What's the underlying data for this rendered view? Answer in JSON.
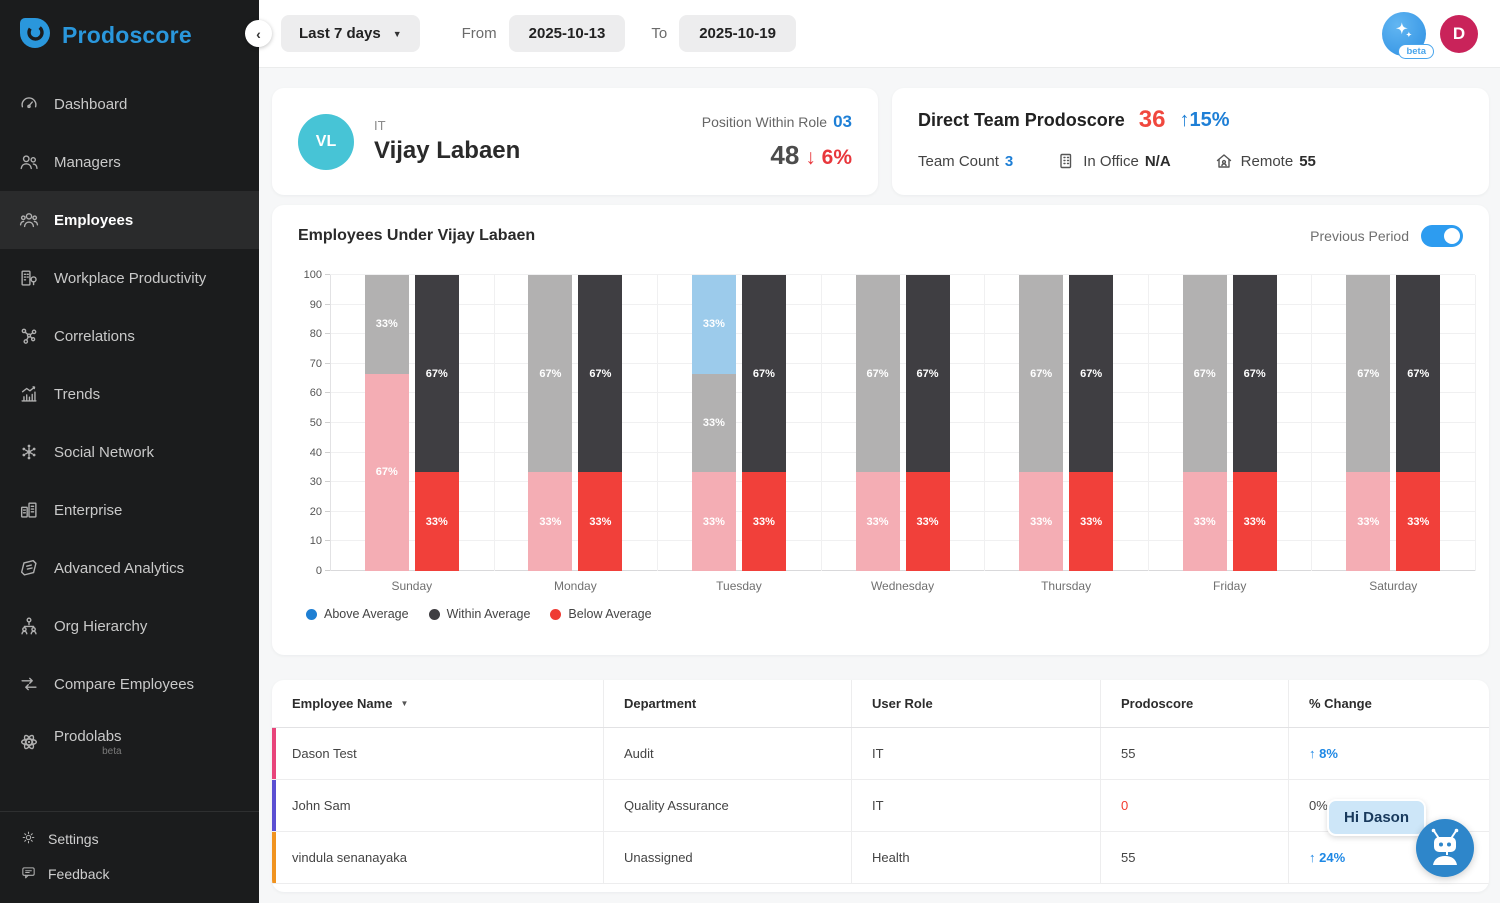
{
  "sidebar": {
    "logo_text": "Prodoscore",
    "items": [
      {
        "label": "Dashboard"
      },
      {
        "label": "Managers"
      },
      {
        "label": "Employees",
        "active": true
      },
      {
        "label": "Workplace Productivity"
      },
      {
        "label": "Correlations"
      },
      {
        "label": "Trends"
      },
      {
        "label": "Social Network"
      },
      {
        "label": "Enterprise"
      },
      {
        "label": "Advanced Analytics"
      },
      {
        "label": "Org Hierarchy"
      },
      {
        "label": "Compare Employees"
      },
      {
        "label": "Prodolabs",
        "beta": "beta"
      }
    ],
    "footer": [
      {
        "label": "Settings"
      },
      {
        "label": "Feedback"
      }
    ]
  },
  "topbar": {
    "range_label": "Last 7 days",
    "from_label": "From",
    "from_value": "2025-10-13",
    "to_label": "To",
    "to_value": "2025-10-19",
    "beta_badge": "beta",
    "avatar_initial": "D"
  },
  "profile": {
    "initials": "VL",
    "department": "IT",
    "name": "Vijay Labaen",
    "position_label": "Position Within Role",
    "position_value": "03",
    "score": "48",
    "score_change": "↓ 6%"
  },
  "team": {
    "title": "Direct Team Prodoscore",
    "score": "36",
    "change": "↑15%",
    "team_count_label": "Team Count",
    "team_count": "3",
    "in_office_label": "In Office",
    "in_office_value": "N/A",
    "remote_label": "Remote",
    "remote_value": "55"
  },
  "chart": {
    "title": "Employees Under Vijay Labaen",
    "toggle_label": "Previous Period",
    "toggle_on": true
  },
  "chart_data": {
    "type": "bar",
    "stacked": true,
    "categories": [
      "Sunday",
      "Monday",
      "Tuesday",
      "Wednesday",
      "Thursday",
      "Friday",
      "Saturday"
    ],
    "ylim": [
      0,
      100
    ],
    "y_ticks": [
      0,
      10,
      20,
      30,
      40,
      50,
      60,
      70,
      80,
      90,
      100
    ],
    "grid": true,
    "legend_position": "bottom-left",
    "legend": [
      {
        "key": "above",
        "label": "Above Average",
        "color": "#1E7FD3"
      },
      {
        "key": "within",
        "label": "Within Average",
        "color": "#3F3E42"
      },
      {
        "key": "below",
        "label": "Below Average",
        "color": "#EF3B33"
      }
    ],
    "series_colors": {
      "current": {
        "below": "#F1403A",
        "within": "#3F3E42",
        "above": "#59A9DE"
      },
      "previous": {
        "below": "#F4ADB4",
        "within": "#B2B1B1",
        "above": "#9CCBEB"
      }
    },
    "groups": [
      {
        "category": "Sunday",
        "previous": [
          {
            "key": "below",
            "value": 66.67
          },
          {
            "key": "within",
            "value": 33.33
          }
        ],
        "current": [
          {
            "key": "below",
            "value": 33.33
          },
          {
            "key": "within",
            "value": 66.67
          }
        ]
      },
      {
        "category": "Monday",
        "previous": [
          {
            "key": "below",
            "value": 33.33
          },
          {
            "key": "within",
            "value": 66.67
          }
        ],
        "current": [
          {
            "key": "below",
            "value": 33.33
          },
          {
            "key": "within",
            "value": 66.67
          }
        ]
      },
      {
        "category": "Tuesday",
        "previous": [
          {
            "key": "below",
            "value": 33.33
          },
          {
            "key": "within",
            "value": 33.33
          },
          {
            "key": "above",
            "value": 33.34
          }
        ],
        "current": [
          {
            "key": "below",
            "value": 33.33
          },
          {
            "key": "within",
            "value": 66.67
          }
        ]
      },
      {
        "category": "Wednesday",
        "previous": [
          {
            "key": "below",
            "value": 33.33
          },
          {
            "key": "within",
            "value": 66.67
          }
        ],
        "current": [
          {
            "key": "below",
            "value": 33.33
          },
          {
            "key": "within",
            "value": 66.67
          }
        ]
      },
      {
        "category": "Thursday",
        "previous": [
          {
            "key": "below",
            "value": 33.33
          },
          {
            "key": "within",
            "value": 66.67
          }
        ],
        "current": [
          {
            "key": "below",
            "value": 33.33
          },
          {
            "key": "within",
            "value": 66.67
          }
        ]
      },
      {
        "category": "Friday",
        "previous": [
          {
            "key": "below",
            "value": 33.33
          },
          {
            "key": "within",
            "value": 66.67
          }
        ],
        "current": [
          {
            "key": "below",
            "value": 33.33
          },
          {
            "key": "within",
            "value": 66.67
          }
        ]
      },
      {
        "category": "Saturday",
        "previous": [
          {
            "key": "below",
            "value": 33.33
          },
          {
            "key": "within",
            "value": 66.67
          }
        ],
        "current": [
          {
            "key": "below",
            "value": 33.33
          },
          {
            "key": "within",
            "value": 66.67
          }
        ]
      }
    ]
  },
  "table": {
    "columns": [
      "Employee Name",
      "Department",
      "User Role",
      "Prodoscore",
      "% Change"
    ],
    "rows": [
      {
        "name": "Dason Test",
        "department": "Audit",
        "role": "IT",
        "score": "55",
        "score_red": false,
        "change": "8%",
        "change_dir": "up",
        "accent": "#E8447A"
      },
      {
        "name": "John Sam",
        "department": "Quality Assurance",
        "role": "IT",
        "score": "0",
        "score_red": true,
        "change": "0%",
        "change_dir": "none",
        "accent": "#5A4FD2"
      },
      {
        "name": "vindula senanayaka",
        "department": "Unassigned",
        "role": "Health",
        "score": "55",
        "score_red": false,
        "change": "24%",
        "change_dir": "up",
        "accent": "#F0931F"
      }
    ]
  },
  "chatbot": {
    "greeting": "Hi Dason"
  }
}
